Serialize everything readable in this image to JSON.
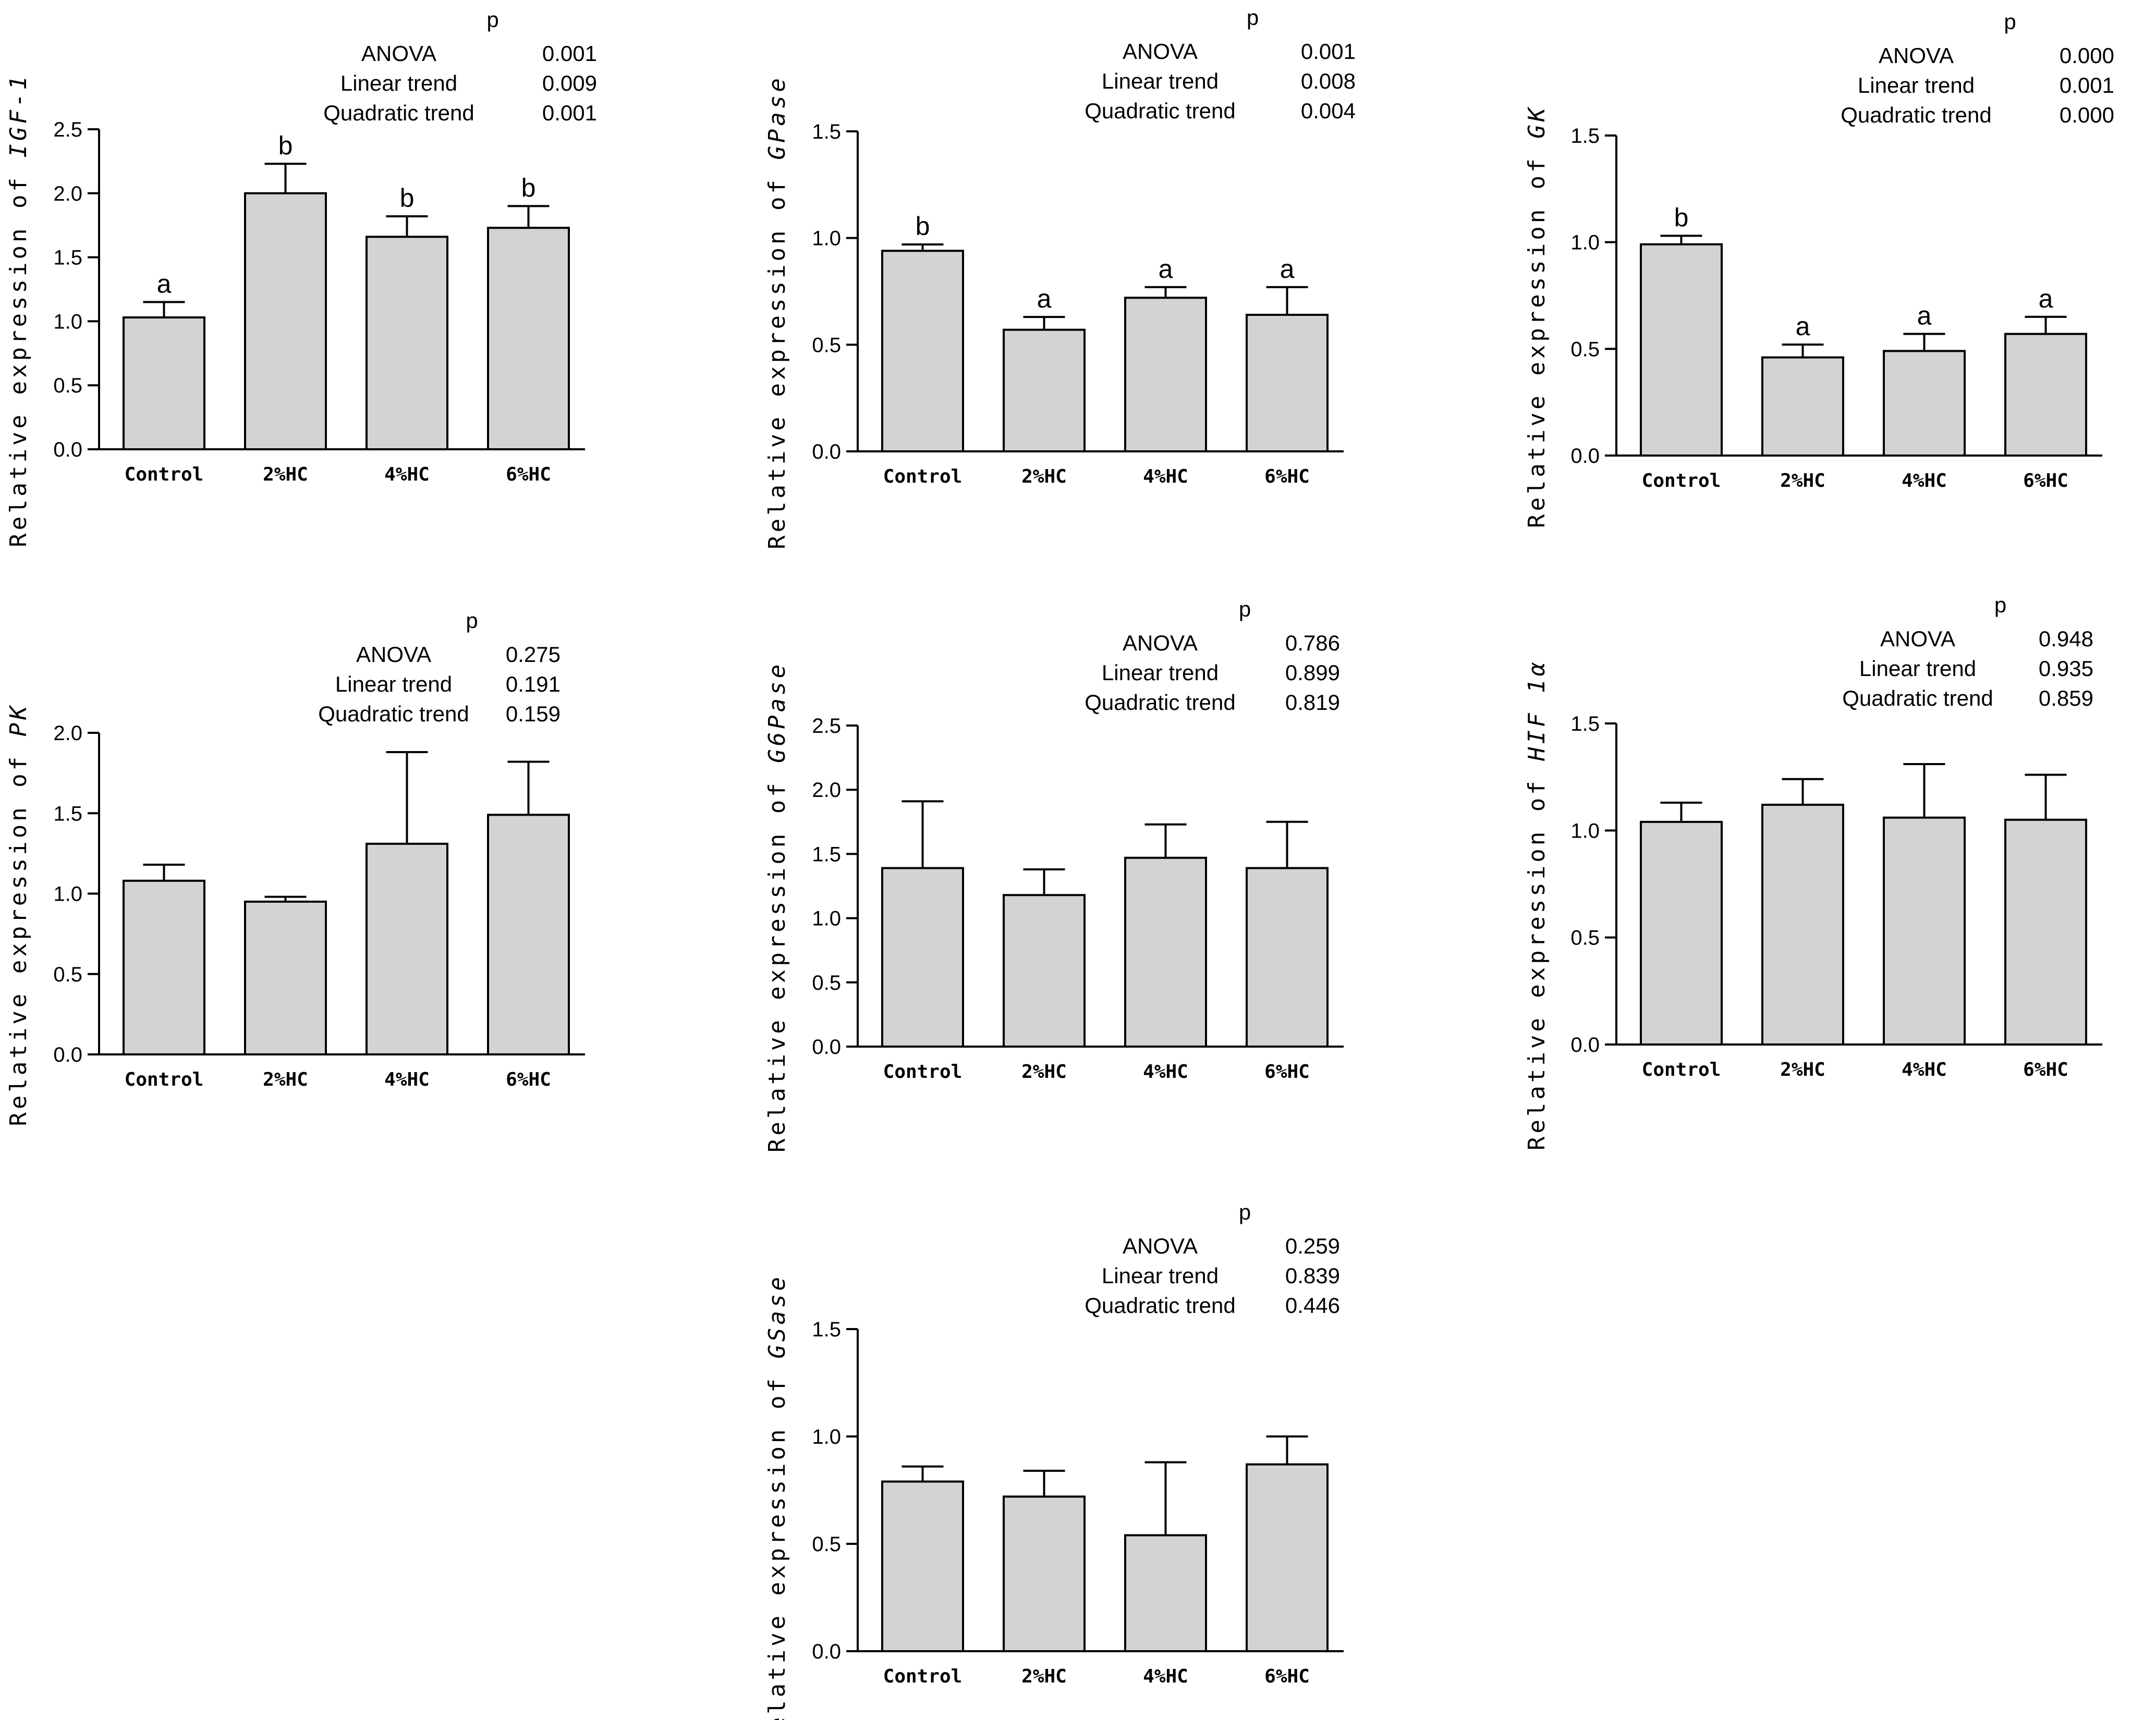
{
  "colors": {
    "bar_fill": "#d3d3d3",
    "stroke": "#000000",
    "background": "#ffffff"
  },
  "chart_data": [
    {
      "type": "bar",
      "gene": "IGF-1",
      "ylabel_prefix": "Relative expression of",
      "categories": [
        "Control",
        "2%HC",
        "4%HC",
        "6%HC"
      ],
      "values": [
        1.03,
        2.0,
        1.66,
        1.73
      ],
      "errors": [
        0.12,
        0.23,
        0.16,
        0.17
      ],
      "letters": [
        "a",
        "b",
        "b",
        "b"
      ],
      "ylim": [
        0,
        2.5
      ],
      "yticks": [
        "0.0",
        "0.5",
        "1.0",
        "1.5",
        "2.0",
        "2.5"
      ],
      "stats": {
        "header": "p",
        "rows": [
          {
            "label": "ANOVA",
            "value": "0.001"
          },
          {
            "label": "Linear trend",
            "value": "0.009"
          },
          {
            "label": "Quadratic trend",
            "value": "0.001"
          }
        ]
      }
    },
    {
      "type": "bar",
      "gene": "GPase",
      "ylabel_prefix": "Relative expression of",
      "categories": [
        "Control",
        "2%HC",
        "4%HC",
        "6%HC"
      ],
      "values": [
        0.94,
        0.57,
        0.72,
        0.64
      ],
      "errors": [
        0.03,
        0.06,
        0.05,
        0.13
      ],
      "letters": [
        "b",
        "a",
        "a",
        "a"
      ],
      "ylim": [
        0,
        1.5
      ],
      "yticks": [
        "0.0",
        "0.5",
        "1.0",
        "1.5"
      ],
      "stats": {
        "header": "p",
        "rows": [
          {
            "label": "ANOVA",
            "value": "0.001"
          },
          {
            "label": "Linear trend",
            "value": "0.008"
          },
          {
            "label": "Quadratic trend",
            "value": "0.004"
          }
        ]
      }
    },
    {
      "type": "bar",
      "gene": "GK",
      "ylabel_prefix": "Relative expression of",
      "categories": [
        "Control",
        "2%HC",
        "4%HC",
        "6%HC"
      ],
      "values": [
        0.99,
        0.46,
        0.49,
        0.57
      ],
      "errors": [
        0.04,
        0.06,
        0.08,
        0.08
      ],
      "letters": [
        "b",
        "a",
        "a",
        "a"
      ],
      "ylim": [
        0,
        1.5
      ],
      "yticks": [
        "0.0",
        "0.5",
        "1.0",
        "1.5"
      ],
      "stats": {
        "header": "p",
        "rows": [
          {
            "label": "ANOVA",
            "value": "0.000"
          },
          {
            "label": "Linear trend",
            "value": "0.001"
          },
          {
            "label": "Quadratic trend",
            "value": "0.000"
          }
        ]
      }
    },
    {
      "type": "bar",
      "gene": "PK",
      "ylabel_prefix": "Relative expression of",
      "categories": [
        "Control",
        "2%HC",
        "4%HC",
        "6%HC"
      ],
      "values": [
        1.08,
        0.95,
        1.31,
        1.49
      ],
      "errors": [
        0.1,
        0.03,
        0.57,
        0.33
      ],
      "letters": [
        "",
        "",
        "",
        ""
      ],
      "ylim": [
        0,
        2.0
      ],
      "yticks": [
        "0.0",
        "0.5",
        "1.0",
        "1.5",
        "2.0"
      ],
      "stats": {
        "header": "p",
        "rows": [
          {
            "label": "ANOVA",
            "value": "0.275"
          },
          {
            "label": "Linear trend",
            "value": "0.191"
          },
          {
            "label": "Quadratic trend",
            "value": "0.159"
          }
        ]
      }
    },
    {
      "type": "bar",
      "gene": "G6Pase",
      "ylabel_prefix": "Relative expression of",
      "categories": [
        "Control",
        "2%HC",
        "4%HC",
        "6%HC"
      ],
      "values": [
        1.39,
        1.18,
        1.47,
        1.39
      ],
      "errors": [
        0.52,
        0.2,
        0.26,
        0.36
      ],
      "letters": [
        "",
        "",
        "",
        ""
      ],
      "ylim": [
        0,
        2.5
      ],
      "yticks": [
        "0.0",
        "0.5",
        "1.0",
        "1.5",
        "2.0",
        "2.5"
      ],
      "stats": {
        "header": "p",
        "rows": [
          {
            "label": "ANOVA",
            "value": "0.786"
          },
          {
            "label": "Linear trend",
            "value": "0.899"
          },
          {
            "label": "Quadratic trend",
            "value": "0.819"
          }
        ]
      }
    },
    {
      "type": "bar",
      "gene": "HIF 1α",
      "ylabel_prefix": "Relative expression of",
      "categories": [
        "Control",
        "2%HC",
        "4%HC",
        "6%HC"
      ],
      "values": [
        1.04,
        1.12,
        1.06,
        1.05
      ],
      "errors": [
        0.09,
        0.12,
        0.25,
        0.21
      ],
      "letters": [
        "",
        "",
        "",
        ""
      ],
      "ylim": [
        0,
        1.5
      ],
      "yticks": [
        "0.0",
        "0.5",
        "1.0",
        "1.5"
      ],
      "stats": {
        "header": "p",
        "rows": [
          {
            "label": "ANOVA",
            "value": "0.948"
          },
          {
            "label": "Linear trend",
            "value": "0.935"
          },
          {
            "label": "Quadratic trend",
            "value": "0.859"
          }
        ]
      }
    },
    {
      "type": "bar",
      "gene": "GSase",
      "ylabel_prefix": "Relative expression of",
      "categories": [
        "Control",
        "2%HC",
        "4%HC",
        "6%HC"
      ],
      "values": [
        0.79,
        0.72,
        0.54,
        0.87
      ],
      "errors": [
        0.07,
        0.12,
        0.34,
        0.13
      ],
      "letters": [
        "",
        "",
        "",
        ""
      ],
      "ylim": [
        0,
        1.5
      ],
      "yticks": [
        "0.0",
        "0.5",
        "1.0",
        "1.5"
      ],
      "stats": {
        "header": "p",
        "rows": [
          {
            "label": "ANOVA",
            "value": "0.259"
          },
          {
            "label": "Linear trend",
            "value": "0.839"
          },
          {
            "label": "Quadratic trend",
            "value": "0.446"
          }
        ]
      }
    }
  ]
}
